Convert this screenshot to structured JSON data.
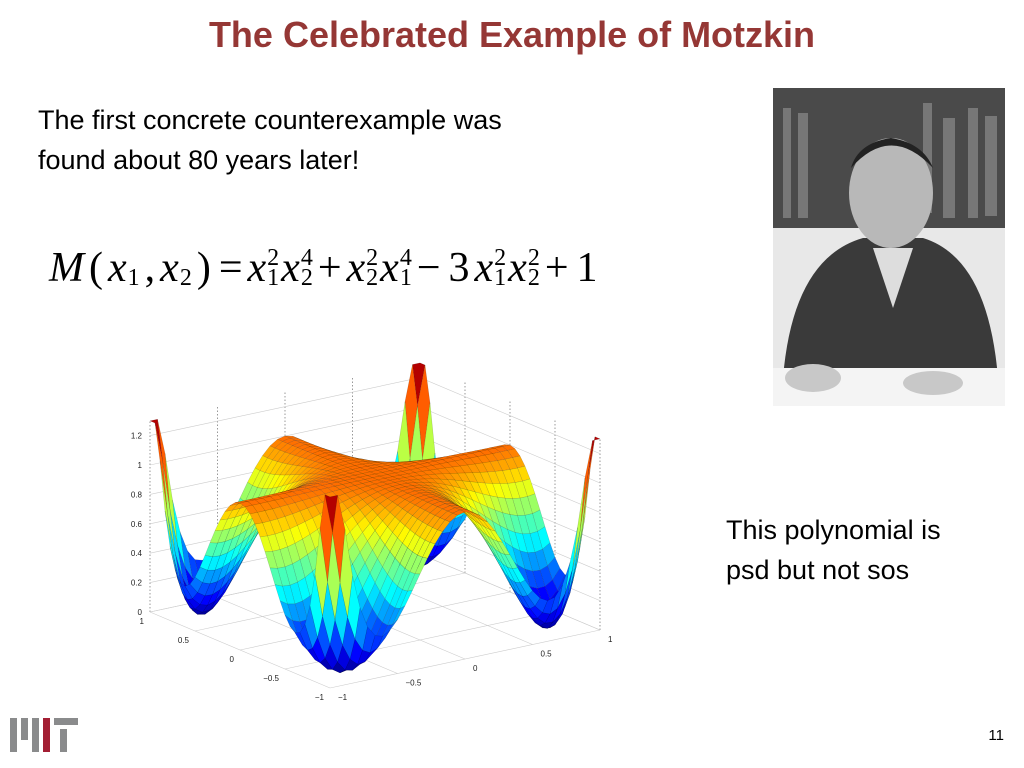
{
  "title": "The Celebrated Example of Motzkin",
  "intro": [
    "The first concrete counterexample was",
    "found about 80 years later!"
  ],
  "formula": [
    {
      "t": "M",
      "italic": true
    },
    {
      "t": "("
    },
    {
      "t": "x",
      "sub": "1",
      "italic": true
    },
    {
      "t": ","
    },
    {
      "t": "x",
      "sub": "2",
      "italic": true
    },
    {
      "t": ")"
    },
    {
      "t": "="
    },
    {
      "t": "x",
      "sup": "2",
      "sub": "1",
      "italic": true
    },
    {
      "t": "x",
      "sup": "4",
      "sub": "2",
      "italic": true
    },
    {
      "t": "+"
    },
    {
      "t": "x",
      "sup": "2",
      "sub": "2",
      "italic": true
    },
    {
      "t": "x",
      "sup": "4",
      "sub": "1",
      "italic": true
    },
    {
      "t": "−"
    },
    {
      "t": "3"
    },
    {
      "t": "x",
      "sup": "2",
      "sub": "1",
      "italic": true
    },
    {
      "t": "x",
      "sup": "2",
      "sub": "2",
      "italic": true
    },
    {
      "t": "+"
    },
    {
      "t": "1"
    }
  ],
  "plot": {
    "z_ticks": [
      "1.2",
      "1",
      "0.8",
      "0.6",
      "0.4",
      "0.2",
      "0"
    ],
    "left_ticks": [
      "1",
      "0.5",
      "0",
      "−0.5",
      "−1"
    ],
    "right_ticks": [
      "−1",
      "−0.5",
      "0",
      "0.5",
      "1"
    ]
  },
  "note": [
    "This polynomial is",
    "psd but not sos"
  ],
  "page_number": "11"
}
